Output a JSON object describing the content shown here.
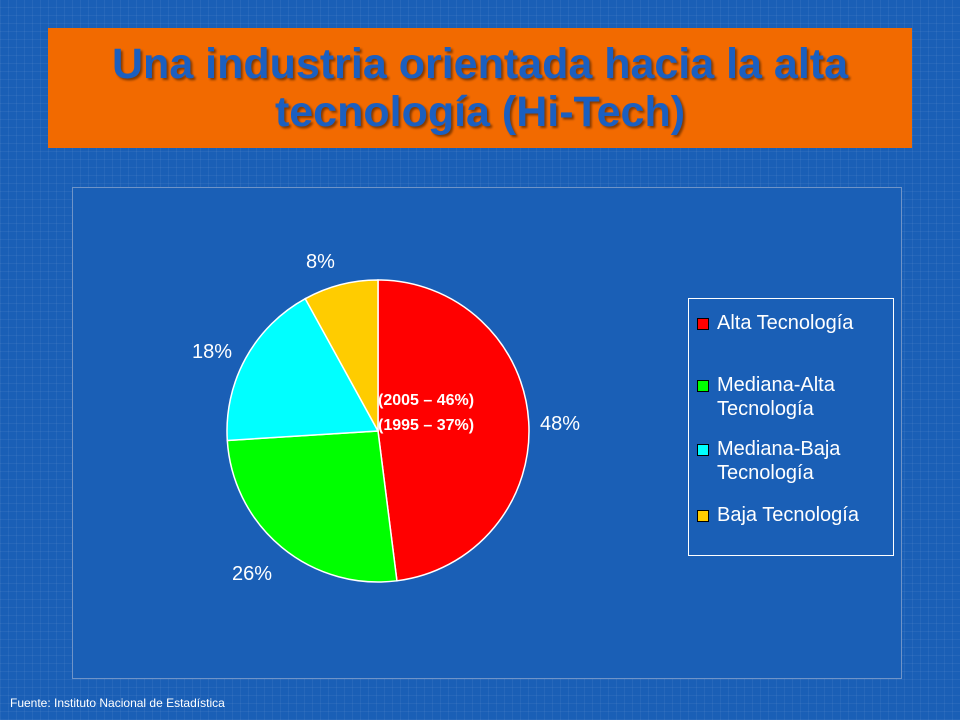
{
  "title": "Una industria orientada hacia la alta tecnología (Hi-Tech)",
  "source": "Fuente: Instituto Nacional de Estadística",
  "chart_data": {
    "type": "pie",
    "categories": [
      "Alta Tecnología",
      "Mediana-Alta Tecnología",
      "Mediana-Baja Tecnología",
      "Baja Tecnología"
    ],
    "values": [
      48,
      26,
      18,
      8
    ],
    "data_labels": [
      "48%",
      "26%",
      "18%",
      "8%"
    ],
    "colors": [
      "#ff0000",
      "#00ff00",
      "#00ffff",
      "#ffcc00"
    ],
    "annotations": [
      "(2005 – 46%)",
      "(1995 – 37%)"
    ],
    "legend_labels": [
      [
        "Alta Tecnología"
      ],
      [
        "Mediana-Alta",
        "Tecnología"
      ],
      [
        "Mediana-Baja",
        "Tecnología"
      ],
      [
        "Baja Tecnología"
      ]
    ],
    "legend": "right"
  }
}
